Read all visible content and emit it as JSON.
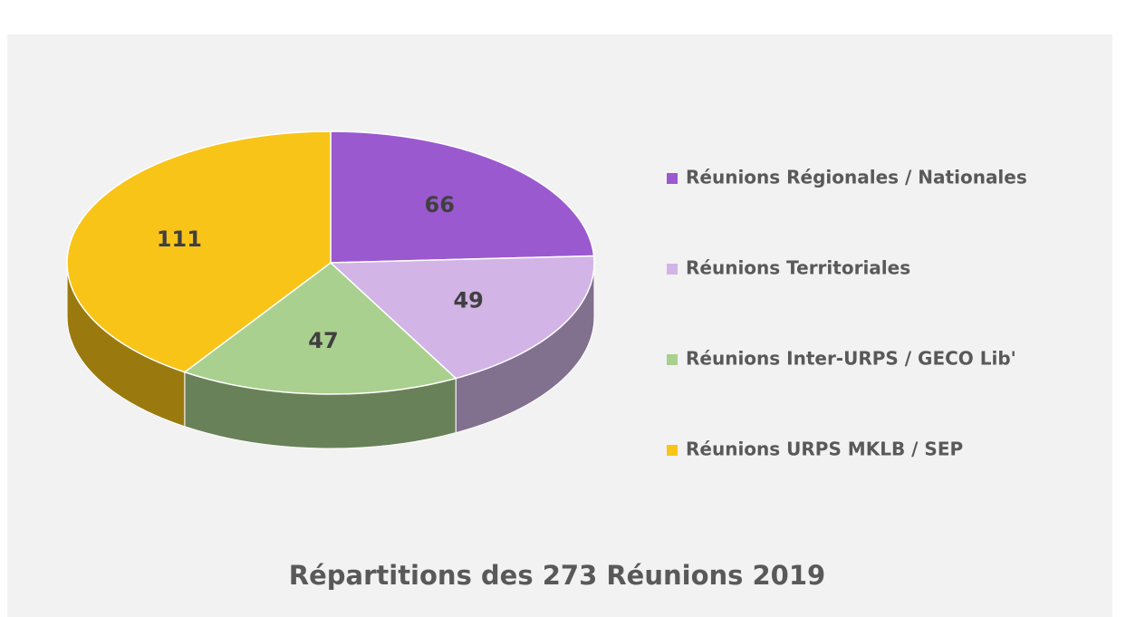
{
  "chart_data": {
    "type": "pie",
    "title": "Répartitions des 273 Réunions 2019",
    "categories": [
      "Réunions Régionales / Nationales",
      "Réunions Territoriales",
      "Réunions Inter-URPS / GECO Lib'",
      "Réunions URPS MKLB / SEP"
    ],
    "values": [
      66,
      49,
      47,
      111
    ],
    "colors": [
      "#9b59d0",
      "#d2b4e6",
      "#a9d08e",
      "#f9c418"
    ],
    "legend": "right"
  }
}
